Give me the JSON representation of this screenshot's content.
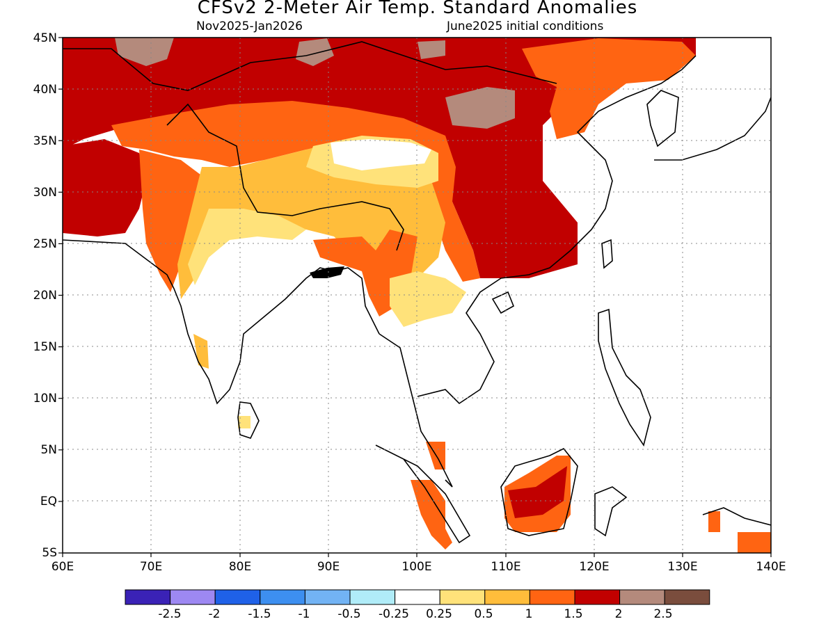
{
  "title": "CFSv2 2-Meter Air Temp. Standard Anomalies",
  "subtitle_left": "Nov2025-Jan2026",
  "subtitle_right": "June2025 initial conditions",
  "lon_labels": [
    "60E",
    "70E",
    "80E",
    "90E",
    "100E",
    "110E",
    "120E",
    "130E",
    "140E"
  ],
  "lat_labels": [
    "45N",
    "40N",
    "35N",
    "30N",
    "25N",
    "20N",
    "15N",
    "10N",
    "5N",
    "EQ",
    "5S"
  ],
  "colorbar": {
    "colors": [
      "#3a22b6",
      "#9d88f2",
      "#1f61e8",
      "#3d8ff0",
      "#72b3f4",
      "#b0ecf8",
      "#ffffff",
      "#ffe27a",
      "#ffbd3b",
      "#ff6412",
      "#c10000",
      "#b48a7c",
      "#7a4d3d"
    ],
    "labels": [
      "-2.5",
      "-2",
      "-1.5",
      "-1",
      "-0.5",
      "-0.25",
      "0.25",
      "0.5",
      "1",
      "1.5",
      "2",
      "2.5"
    ]
  },
  "map_colors": {
    "dark_red": "#c10000",
    "orange_red": "#ff6412",
    "orange": "#ffbd3b",
    "yellow": "#ffe27a",
    "taupe": "#b48a7c"
  }
}
